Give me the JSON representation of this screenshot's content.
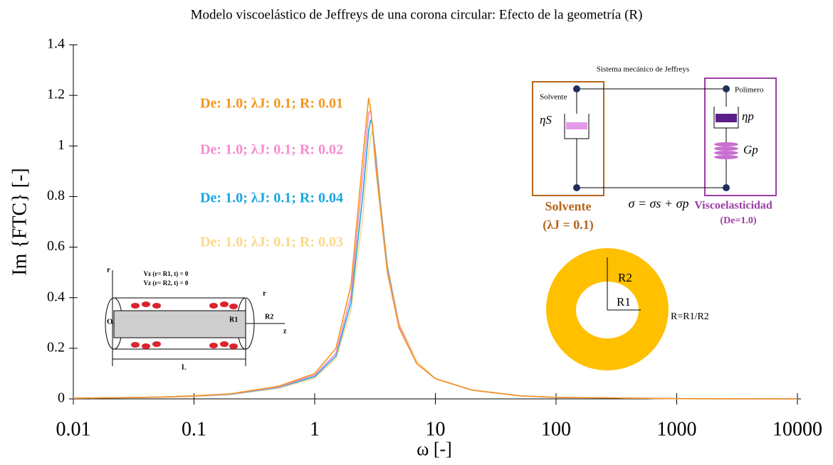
{
  "chart_data": {
    "type": "line",
    "title": "Modelo viscoelástico de Jeffreys de una corona circular: Efecto de la geometría (R)",
    "x_label": "ω [-]",
    "y_label": "Im {FTC} [-]",
    "x_scale": "log",
    "x": [
      0.01,
      0.02,
      0.05,
      0.1,
      0.2,
      0.5,
      1,
      1.5,
      2,
      2.5,
      2.8,
      2.9,
      3,
      3.2,
      3.5,
      4,
      5,
      7,
      10,
      20,
      50,
      100,
      1000,
      10000
    ],
    "series": [
      {
        "name": "De: 1.0; λJ: 0.1; R: 0.03",
        "color": "#fbd98b",
        "values": [
          0.003,
          0.004,
          0.006,
          0.01,
          0.017,
          0.042,
          0.082,
          0.16,
          0.35,
          0.72,
          0.98,
          1.03,
          1.06,
          0.98,
          0.79,
          0.53,
          0.3,
          0.15,
          0.08,
          0.035,
          0.012,
          0.006,
          0.001,
          0
        ]
      },
      {
        "name": "De: 1.0; λJ: 0.1; R: 0.04",
        "color": "#1aa7e0",
        "values": [
          0.003,
          0.004,
          0.007,
          0.011,
          0.018,
          0.045,
          0.088,
          0.17,
          0.38,
          0.8,
          1.06,
          1.1,
          1.09,
          0.96,
          0.77,
          0.52,
          0.29,
          0.14,
          0.08,
          0.035,
          0.012,
          0.006,
          0.001,
          0
        ]
      },
      {
        "name": "De: 1.0; λJ: 0.1; R: 0.02",
        "color": "#f58ccf",
        "values": [
          0.003,
          0.004,
          0.007,
          0.011,
          0.019,
          0.047,
          0.094,
          0.18,
          0.41,
          0.88,
          1.13,
          1.14,
          1.09,
          0.94,
          0.76,
          0.51,
          0.29,
          0.14,
          0.08,
          0.035,
          0.012,
          0.006,
          0.001,
          0
        ]
      },
      {
        "name": "De: 1.0; λJ: 0.1; R: 0.01",
        "color": "#f5961e",
        "values": [
          0.003,
          0.004,
          0.007,
          0.012,
          0.02,
          0.05,
          0.1,
          0.2,
          0.45,
          0.95,
          1.19,
          1.15,
          1.08,
          0.92,
          0.75,
          0.5,
          0.28,
          0.14,
          0.08,
          0.035,
          0.012,
          0.006,
          0.001,
          0
        ]
      }
    ],
    "xlim": [
      0.01,
      10000
    ],
    "xticks": [
      0.01,
      0.1,
      1,
      10,
      100,
      1000,
      10000
    ],
    "ylim": [
      0,
      1.4
    ],
    "yticks": [
      0,
      0.2,
      0.4,
      0.6,
      0.8,
      1,
      1.2,
      1.4
    ],
    "grid": false,
    "insets": {
      "jeffreys": {
        "title": "Sistema mecánico de Jeffreys",
        "solvent_tag": "Solvente",
        "polymer_tag": "Polímero",
        "eta_s": "ηS",
        "eta_p": "ηp",
        "g_p": "Gp",
        "sigma": "σ = σs + σp",
        "solvent": "Solvente",
        "lambda": "(λJ = 0.1)",
        "visco": "Viscoelasticidad",
        "de": "(De=1.0)"
      },
      "annulus": {
        "r2": "R2",
        "r1": "R1",
        "ratio": "R=R1/R2"
      },
      "cylinder": {
        "r_axis": "r",
        "bc1": "Vz (r= R1, t) = 0",
        "bc2": "Vz (r= R2, t) = 0",
        "origin": "O",
        "r1": "R1",
        "r2": "R2",
        "r_small": "r",
        "z": "z",
        "length": "L"
      }
    }
  }
}
